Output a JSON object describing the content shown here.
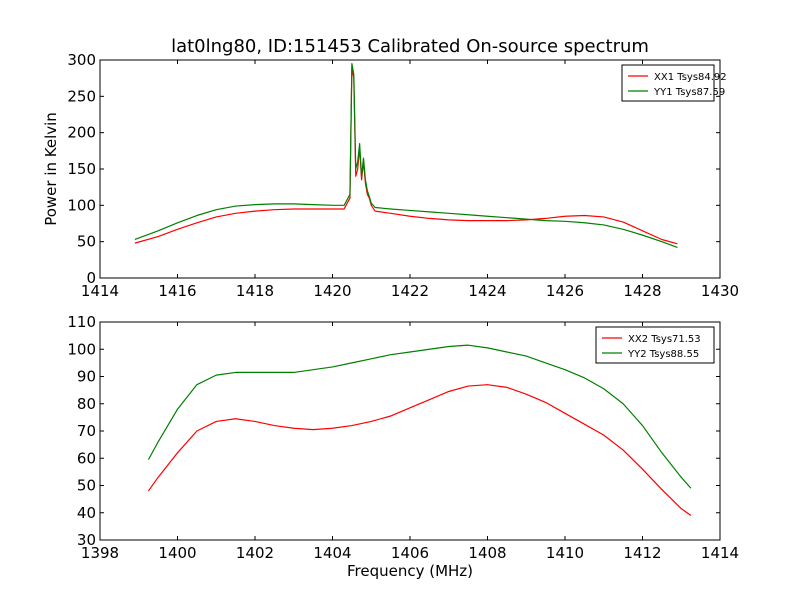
{
  "chart_data": [
    {
      "type": "line",
      "title": "lat0lng80, ID:151453 Calibrated On-source spectrum",
      "xlabel": "",
      "ylabel": "Power in Kelvin",
      "xlim": [
        1414,
        1430
      ],
      "ylim": [
        0,
        300
      ],
      "xticks": [
        1414,
        1416,
        1418,
        1420,
        1422,
        1424,
        1426,
        1428,
        1430
      ],
      "yticks": [
        0,
        50,
        100,
        150,
        200,
        250,
        300
      ],
      "legend_position": "top-right",
      "series": [
        {
          "name": "XX1 Tsys84.92",
          "color": "#ff0000",
          "x": [
            1414.9,
            1415.5,
            1416.0,
            1416.5,
            1417.0,
            1417.5,
            1418.0,
            1418.5,
            1419.0,
            1419.5,
            1420.0,
            1420.3,
            1420.45,
            1420.5,
            1420.55,
            1420.6,
            1420.65,
            1420.7,
            1420.75,
            1420.8,
            1420.85,
            1420.9,
            1420.95,
            1421.0,
            1421.1,
            1421.5,
            1422.0,
            1422.5,
            1423.0,
            1423.5,
            1424.0,
            1424.5,
            1425.0,
            1425.5,
            1426.0,
            1426.5,
            1427.0,
            1427.5,
            1428.0,
            1428.5,
            1428.9
          ],
          "values": [
            48,
            57,
            67,
            76,
            84,
            89,
            92,
            94,
            95,
            95,
            95,
            95,
            110,
            290,
            275,
            140,
            150,
            180,
            135,
            160,
            130,
            115,
            110,
            100,
            92,
            89,
            85,
            82,
            80,
            79,
            79,
            79,
            80,
            82,
            85,
            86,
            84,
            77,
            65,
            53,
            47
          ]
        },
        {
          "name": "YY1 Tsys87.59",
          "color": "#008000",
          "x": [
            1414.9,
            1415.5,
            1416.0,
            1416.5,
            1417.0,
            1417.5,
            1418.0,
            1418.5,
            1419.0,
            1419.5,
            1420.0,
            1420.3,
            1420.45,
            1420.5,
            1420.55,
            1420.6,
            1420.65,
            1420.7,
            1420.75,
            1420.8,
            1420.85,
            1420.9,
            1420.95,
            1421.0,
            1421.1,
            1421.5,
            1422.0,
            1422.5,
            1423.0,
            1423.5,
            1424.0,
            1424.5,
            1425.0,
            1425.5,
            1426.0,
            1426.5,
            1427.0,
            1427.5,
            1428.0,
            1428.5,
            1428.9
          ],
          "values": [
            53,
            65,
            76,
            86,
            94,
            99,
            101,
            102,
            102,
            101,
            100,
            100,
            115,
            295,
            280,
            150,
            160,
            185,
            140,
            165,
            135,
            120,
            112,
            103,
            97,
            95,
            93,
            91,
            89,
            87,
            85,
            83,
            81,
            79,
            78,
            76,
            73,
            67,
            59,
            50,
            42
          ]
        }
      ]
    },
    {
      "type": "line",
      "title": "",
      "xlabel": "Frequency (MHz)",
      "ylabel": "",
      "xlim": [
        1398,
        1414
      ],
      "ylim": [
        30,
        110
      ],
      "xticks": [
        1398,
        1400,
        1402,
        1404,
        1406,
        1408,
        1410,
        1412,
        1414
      ],
      "yticks": [
        30,
        40,
        50,
        60,
        70,
        80,
        90,
        100,
        110
      ],
      "legend_position": "top-right",
      "series": [
        {
          "name": "XX2 Tsys71.53",
          "color": "#ff0000",
          "x": [
            1399.25,
            1399.5,
            1400.0,
            1400.5,
            1401.0,
            1401.5,
            1402.0,
            1402.5,
            1403.0,
            1403.5,
            1404.0,
            1404.5,
            1405.0,
            1405.5,
            1406.0,
            1406.5,
            1407.0,
            1407.5,
            1408.0,
            1408.5,
            1409.0,
            1409.5,
            1410.0,
            1410.5,
            1411.0,
            1411.5,
            1412.0,
            1412.5,
            1413.0,
            1413.25
          ],
          "values": [
            48,
            53,
            62,
            70,
            73.5,
            74.5,
            73.5,
            72,
            71,
            70.5,
            71,
            72,
            73.5,
            75.5,
            78.5,
            81.5,
            84.5,
            86.5,
            87,
            86,
            83.5,
            80.5,
            76.5,
            72.5,
            68.5,
            63,
            56,
            48.5,
            41.5,
            39
          ]
        },
        {
          "name": "YY2 Tsys88.55",
          "color": "#008000",
          "x": [
            1399.25,
            1399.5,
            1400.0,
            1400.5,
            1401.0,
            1401.5,
            1402.0,
            1402.5,
            1403.0,
            1403.5,
            1404.0,
            1404.5,
            1405.0,
            1405.5,
            1406.0,
            1406.5,
            1407.0,
            1407.5,
            1408.0,
            1408.5,
            1409.0,
            1409.5,
            1410.0,
            1410.5,
            1411.0,
            1411.5,
            1412.0,
            1412.5,
            1413.0,
            1413.25
          ],
          "values": [
            59.5,
            66,
            78,
            87,
            90.5,
            91.5,
            91.5,
            91.5,
            91.5,
            92.5,
            93.5,
            95,
            96.5,
            98,
            99,
            100,
            101,
            101.5,
            100.5,
            99,
            97.5,
            95,
            92.5,
            89.5,
            85.5,
            80,
            72,
            62,
            53,
            49
          ]
        }
      ]
    }
  ]
}
